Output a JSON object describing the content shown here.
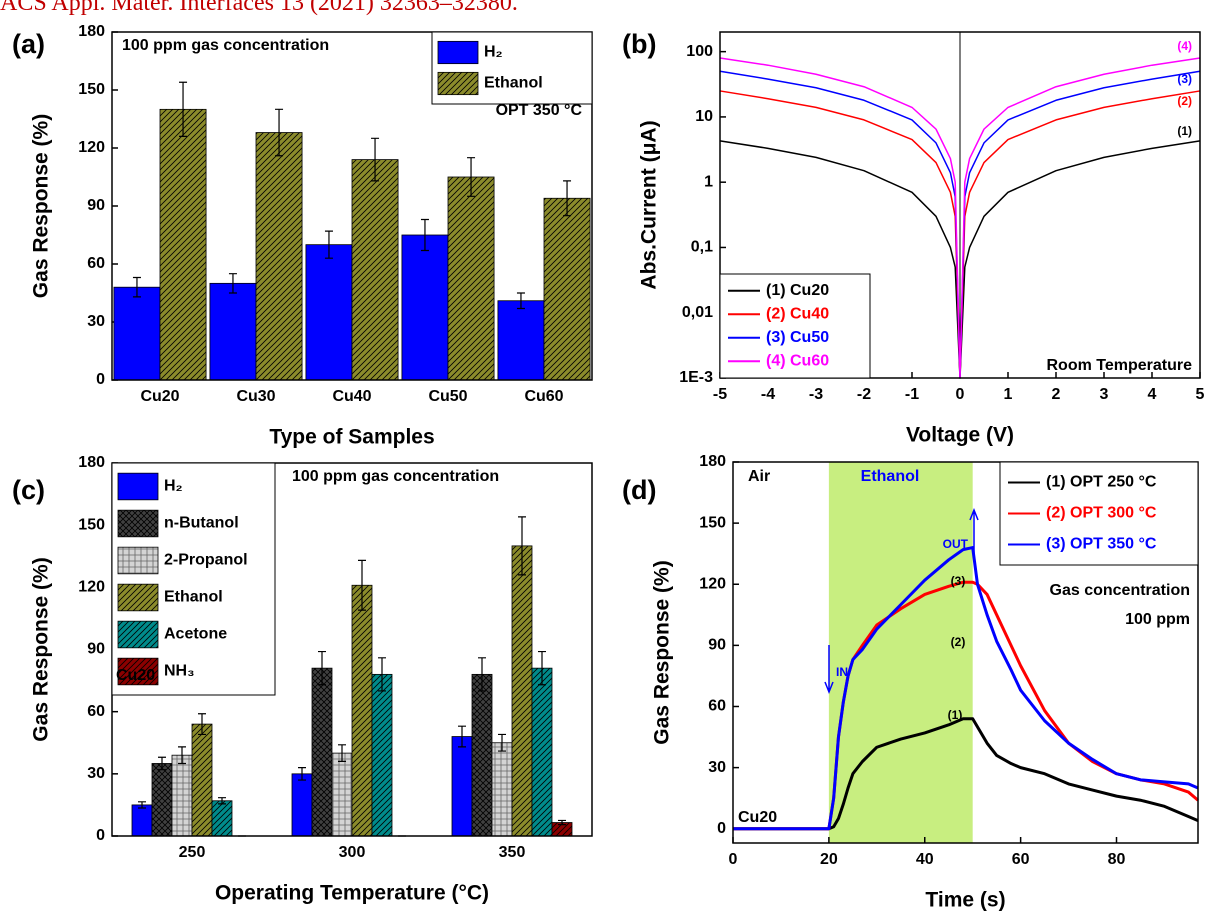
{
  "header": "ACS Appl. Mater. Interfaces 13 (2021) 32363–32380.",
  "chart_data": [
    {
      "type": "bar",
      "panel_label": "(a)",
      "categories": [
        "Cu20",
        "Cu30",
        "Cu40",
        "Cu50",
        "Cu60"
      ],
      "series": [
        {
          "name": "H₂",
          "color": "#0000ff",
          "values": [
            48,
            50,
            70,
            75,
            41
          ],
          "errors": [
            5,
            5,
            7,
            8,
            4
          ]
        },
        {
          "name": "Ethanol",
          "color": "#8b8b2b",
          "hatch": "diagonal",
          "values": [
            140,
            128,
            114,
            105,
            94
          ],
          "errors": [
            14,
            12,
            11,
            10,
            9
          ]
        }
      ],
      "ylim": [
        0,
        180
      ],
      "yticks": [
        0,
        30,
        60,
        90,
        120,
        150,
        180
      ],
      "xlabel": "Type of Samples",
      "ylabel": "Gas Response (%)",
      "legend": "upper right",
      "annotations": [
        "100 ppm gas concentration",
        "OPT 350 °C"
      ]
    },
    {
      "type": "line",
      "panel_label": "(b)",
      "log": true,
      "x": [
        -5,
        -4,
        -3,
        -2,
        -1,
        -0.5,
        -0.2,
        -0.1,
        0,
        0.1,
        0.2,
        0.5,
        1,
        2,
        3,
        4,
        5
      ],
      "series": [
        {
          "name": "(1) Cu20",
          "color": "#000000",
          "values": [
            4.3,
            3.3,
            2.4,
            1.5,
            0.7,
            0.3,
            0.1,
            0.05,
            0.001,
            0.05,
            0.1,
            0.3,
            0.7,
            1.5,
            2.4,
            3.3,
            4.3
          ]
        },
        {
          "name": "(2) Cu40",
          "color": "#ff0000",
          "values": [
            25,
            19,
            14,
            9,
            4.5,
            2,
            0.7,
            0.3,
            0.001,
            0.3,
            0.7,
            2,
            4.5,
            9,
            14,
            19,
            25
          ]
        },
        {
          "name": "(3) Cu50",
          "color": "#0000ff",
          "values": [
            50,
            38,
            28,
            18,
            9,
            4,
            1.4,
            0.6,
            0.001,
            0.6,
            1.4,
            4,
            9,
            18,
            28,
            38,
            50
          ]
        },
        {
          "name": "(4) Cu60",
          "color": "#ff00ff",
          "values": [
            80,
            62,
            45,
            29,
            14,
            6.5,
            2.3,
            1,
            0.001,
            1,
            2.3,
            6.5,
            14,
            29,
            45,
            62,
            80
          ]
        }
      ],
      "xlim": [
        -5,
        5
      ],
      "xticks": [
        -5,
        -4,
        -3,
        -2,
        -1,
        0,
        1,
        2,
        3,
        4,
        5
      ],
      "ylim": [
        0.001,
        200
      ],
      "yticks": [
        {
          "value": 0.001,
          "label": "1E-3"
        },
        {
          "value": 0.01,
          "label": "0,01"
        },
        {
          "value": 0.1,
          "label": "0,1"
        },
        1,
        10,
        100
      ],
      "vline": 0,
      "xlabel": "Voltage (V)",
      "ylabel": "Abs.Current (μA)",
      "legend": "lower left",
      "annotations": [
        "(1)",
        "(2)",
        "(3)",
        "(4)",
        "Room Temperature"
      ]
    },
    {
      "type": "bar",
      "panel_label": "(c)",
      "categories": [
        "250",
        "300",
        "350"
      ],
      "series": [
        {
          "name": "H₂",
          "color": "#0000ff",
          "values": [
            15,
            30,
            48
          ],
          "errors": [
            1.5,
            3,
            5
          ]
        },
        {
          "name": "n-Butanol",
          "color": "#404040",
          "hatch": "cross",
          "values": [
            35,
            81,
            78
          ],
          "errors": [
            3,
            8,
            8
          ]
        },
        {
          "name": "2-Propanol",
          "color": "#d4d4d4",
          "hatch": "check",
          "values": [
            39,
            40,
            45
          ],
          "errors": [
            4,
            4,
            4
          ]
        },
        {
          "name": "Ethanol",
          "color": "#8b8b2b",
          "hatch": "diagonal",
          "values": [
            54,
            121,
            140
          ],
          "errors": [
            5,
            12,
            14
          ]
        },
        {
          "name": "Acetone",
          "color": "#008b8b",
          "hatch": "diagonal",
          "values": [
            17,
            78,
            81
          ],
          "errors": [
            1.5,
            8,
            8
          ]
        },
        {
          "name": "NH₃",
          "color": "#8b0000",
          "hatch": "diagonal",
          "values": [
            0,
            0,
            6.5
          ],
          "errors": [
            0,
            0,
            1
          ]
        }
      ],
      "ylim": [
        0,
        180
      ],
      "yticks": [
        0,
        30,
        60,
        90,
        120,
        150,
        180
      ],
      "xlabel": "Operating Temperature (°C)",
      "ylabel": "Gas Response (%)",
      "legend": "upper left",
      "annotations": [
        "100 ppm gas concentration",
        "Cu20"
      ]
    },
    {
      "type": "line",
      "panel_label": "(d)",
      "x": [
        0,
        5,
        10,
        15,
        20,
        21,
        22,
        23,
        24,
        25,
        27,
        30,
        35,
        40,
        45,
        48,
        50,
        51,
        53,
        55,
        58,
        60,
        65,
        70,
        75,
        80,
        85,
        90,
        95,
        97
      ],
      "series": [
        {
          "name": "(1) OPT 250 °C",
          "color": "#000000",
          "values": [
            0,
            0,
            0,
            0,
            0,
            1,
            5,
            12,
            20,
            27,
            33,
            40,
            44,
            47,
            51,
            54,
            54,
            50,
            42,
            36,
            32,
            30,
            27,
            22,
            19,
            16,
            14,
            11,
            6,
            4
          ]
        },
        {
          "name": "(2) OPT 300 °C",
          "color": "#ff0000",
          "values": [
            0,
            0,
            0,
            0,
            0,
            15,
            45,
            62,
            75,
            83,
            90,
            100,
            108,
            115,
            119,
            121,
            121,
            120,
            115,
            105,
            90,
            80,
            58,
            42,
            33,
            27,
            24,
            22,
            18,
            14
          ]
        },
        {
          "name": "(3) OPT 350 °C",
          "color": "#0000ff",
          "values": [
            0,
            0,
            0,
            0,
            0,
            15,
            45,
            62,
            75,
            83,
            88,
            98,
            110,
            122,
            132,
            137,
            138,
            120,
            105,
            92,
            78,
            68,
            53,
            42,
            34,
            27,
            24,
            23,
            22,
            20
          ]
        }
      ],
      "xlim": [
        0,
        97
      ],
      "xticks": [
        0,
        20,
        40,
        60,
        80
      ],
      "ylim": [
        -7,
        180
      ],
      "yticks": [
        0,
        30,
        60,
        90,
        120,
        150,
        180
      ],
      "shade": [
        20,
        50
      ],
      "shade_color": "#c8ee80",
      "xlabel": "Time (s)",
      "ylabel": "Gas Response (%)",
      "legend": "upper right",
      "annotations": [
        "Air",
        "Ethanol",
        "IN",
        "OUT",
        "(1)",
        "(2)",
        "(3)",
        "Gas concentration",
        "100 ppm",
        "Cu20"
      ]
    }
  ]
}
